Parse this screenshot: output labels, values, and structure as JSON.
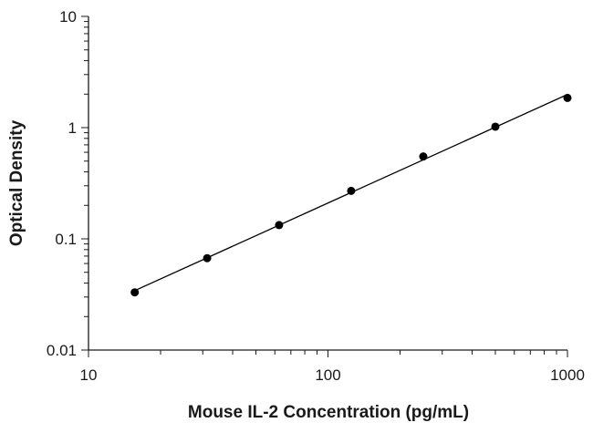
{
  "chart_data": {
    "type": "scatter",
    "xlabel": "Mouse IL-2 Concentration (pg/mL)",
    "ylabel": "Optical Density",
    "x_scale": "log",
    "y_scale": "log",
    "xlim": [
      10,
      1000
    ],
    "ylim": [
      0.01,
      10
    ],
    "x_ticks": [
      "10",
      "100",
      "1000"
    ],
    "y_ticks": [
      "0.01",
      "0.1",
      "1",
      "10"
    ],
    "grid": false,
    "legend": "none",
    "series": [
      {
        "x": [
          15.6,
          31.3,
          62.5,
          125,
          250,
          500,
          1000
        ],
        "y": [
          0.033,
          0.067,
          0.133,
          0.27,
          0.55,
          1.02,
          1.85
        ],
        "marker": "circle",
        "color": "#000000",
        "trendline": true
      }
    ]
  }
}
